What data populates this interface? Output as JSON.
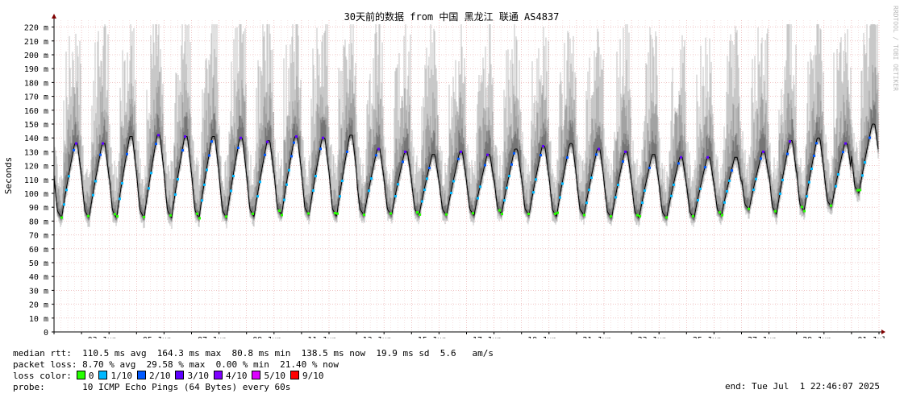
{
  "chart_data": {
    "type": "line",
    "title": "30天前的数据 from 中国 黑龙江 联通 AS4837",
    "ylabel": "Seconds",
    "watermark": "RRDTOOL / TOBI OETIKER",
    "ylim": [
      0,
      225
    ],
    "yticks": [
      "0",
      "10 m",
      "20 m",
      "30 m",
      "40 m",
      "50 m",
      "60 m",
      "70 m",
      "80 m",
      "90 m",
      "100 m",
      "110 m",
      "120 m",
      "130 m",
      "140 m",
      "150 m",
      "160 m",
      "170 m",
      "180 m",
      "190 m",
      "200 m",
      "210 m",
      "220 m"
    ],
    "x_ticks": [
      "03 Jun",
      "05 Jun",
      "07 Jun",
      "09 Jun",
      "11 Jun",
      "13 Jun",
      "15 Jun",
      "17 Jun",
      "19 Jun",
      "21 Jun",
      "23 Jun",
      "25 Jun",
      "27 Jun",
      "29 Jun",
      "01 Jul"
    ],
    "days": 30,
    "series": [
      {
        "name": "median rtt",
        "daily_min_ms": [
          82,
          82,
          82,
          82,
          82,
          82,
          82,
          83,
          84,
          84,
          83,
          84,
          84,
          84,
          84,
          84,
          85,
          84,
          83,
          84,
          82,
          82,
          82,
          82,
          84,
          88,
          85,
          87,
          90,
          100
        ],
        "daily_max_ms": [
          136,
          136,
          141,
          142,
          141,
          141,
          140,
          138,
          141,
          140,
          142,
          132,
          130,
          128,
          130,
          128,
          132,
          134,
          136,
          132,
          130,
          128,
          126,
          126,
          126,
          130,
          138,
          140,
          136,
          150
        ]
      }
    ],
    "grid": true
  },
  "stats": {
    "median_rtt": "median rtt:  110.5 ms avg  164.3 ms max  80.8 ms min  138.5 ms now  19.9 ms sd  5.6   am/s",
    "packet_loss": "packet loss: 8.70 % avg  29.58 % max  0.00 % min  21.40 % now",
    "loss_color_label": "loss color:",
    "probe": "probe:       10 ICMP Echo Pings (64 Bytes) every 60s",
    "end": "end: Tue Jul  1 22:46:07 2025"
  },
  "loss_colors": [
    {
      "label": "0",
      "color": "#26ff00"
    },
    {
      "label": "1/10",
      "color": "#00b8ff"
    },
    {
      "label": "2/10",
      "color": "#0059ff"
    },
    {
      "label": "3/10",
      "color": "#5e00ff"
    },
    {
      "label": "4/10",
      "color": "#7e00ff"
    },
    {
      "label": "5/10",
      "color": "#dd00ff"
    },
    {
      "label": "9/10",
      "color": "#ff0000"
    }
  ]
}
